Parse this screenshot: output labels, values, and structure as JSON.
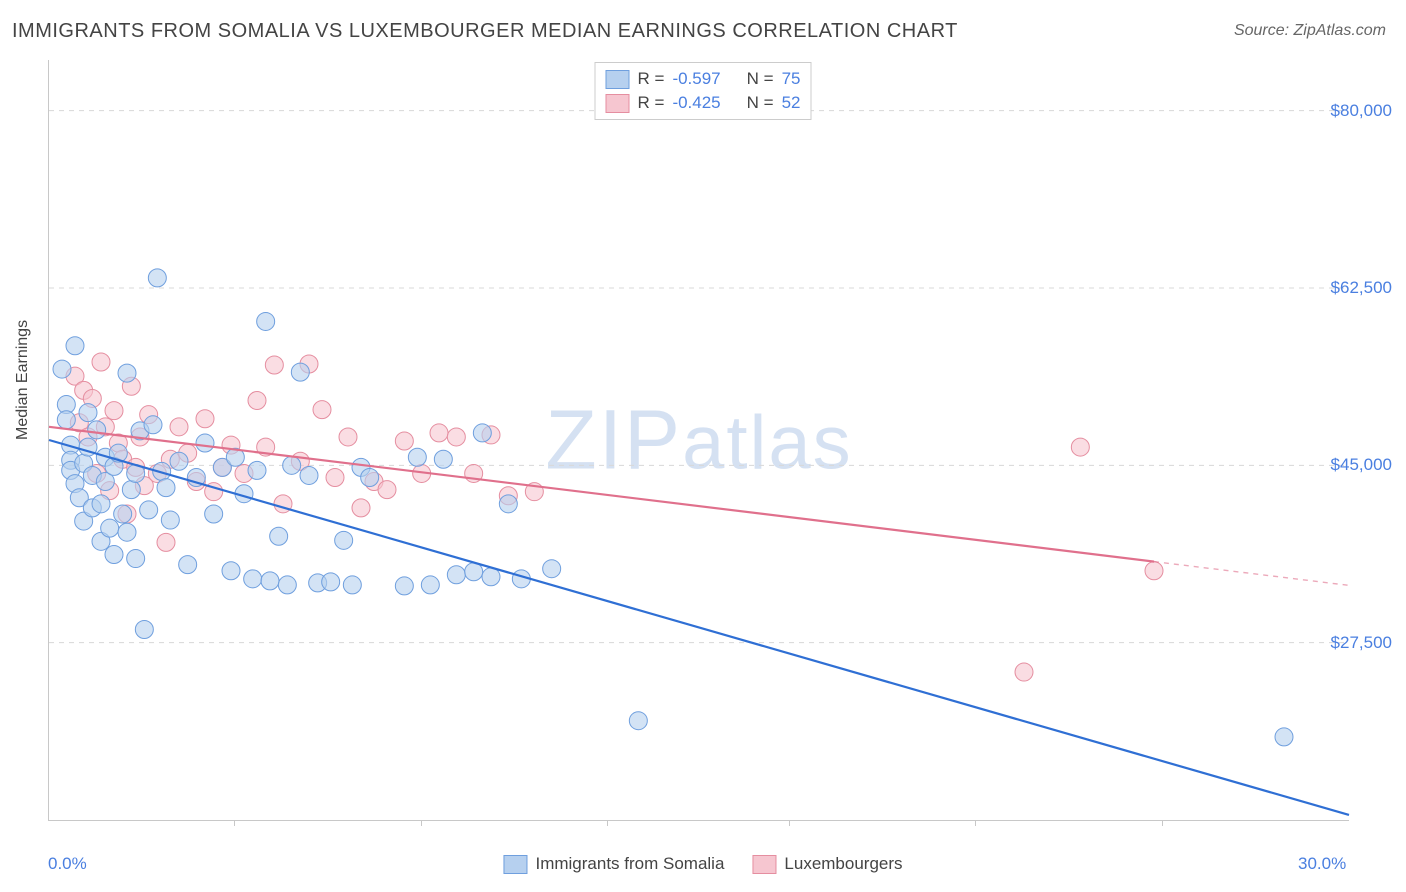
{
  "title": "IMMIGRANTS FROM SOMALIA VS LUXEMBOURGER MEDIAN EARNINGS CORRELATION CHART",
  "source_label": "Source:",
  "source_value": "ZipAtlas.com",
  "ylabel": "Median Earnings",
  "watermark": "ZIPatlas",
  "colors": {
    "series_a_fill": "#b6d0ef",
    "series_a_stroke": "#6f9fde",
    "series_b_fill": "#f6c6d0",
    "series_b_stroke": "#e58ea0",
    "trend_a": "#2f6fd4",
    "trend_b": "#e0708c",
    "grid": "#d8d8d8",
    "axis": "#c8c8c8",
    "tick_text": "#4a7fe0",
    "title_text": "#444444",
    "background": "#ffffff"
  },
  "marker_radius": 9,
  "marker_opacity": 0.6,
  "trend_line_width": 2.2,
  "chart": {
    "type": "scatter",
    "xlim": [
      0,
      30
    ],
    "ylim": [
      10000,
      85000
    ],
    "ytick_values": [
      27500,
      45000,
      62500,
      80000
    ],
    "ytick_labels": [
      "$27,500",
      "$45,000",
      "$62,500",
      "$80,000"
    ],
    "xtick_values": [
      0,
      30
    ],
    "xtick_labels": [
      "0.0%",
      "30.0%"
    ],
    "vtick_positions": [
      4.3,
      8.6,
      12.9,
      17.1,
      21.4,
      25.7
    ]
  },
  "series": [
    {
      "id": "a",
      "name": "Immigrants from Somalia",
      "R": "-0.597",
      "N": "75",
      "trend": {
        "x1": 0,
        "y1": 47500,
        "x2": 30,
        "y2": 10500,
        "extrapolate_from": 30
      },
      "points": [
        [
          0.3,
          54500
        ],
        [
          0.4,
          51000
        ],
        [
          0.4,
          49500
        ],
        [
          0.5,
          47000
        ],
        [
          0.5,
          45500
        ],
        [
          0.5,
          44500
        ],
        [
          0.6,
          43200
        ],
        [
          0.6,
          56800
        ],
        [
          0.7,
          41800
        ],
        [
          0.8,
          45200
        ],
        [
          0.8,
          39500
        ],
        [
          0.9,
          46800
        ],
        [
          0.9,
          50200
        ],
        [
          1.0,
          44000
        ],
        [
          1.0,
          40800
        ],
        [
          1.1,
          48500
        ],
        [
          1.2,
          41200
        ],
        [
          1.2,
          37500
        ],
        [
          1.3,
          45800
        ],
        [
          1.3,
          43400
        ],
        [
          1.4,
          38800
        ],
        [
          1.5,
          44900
        ],
        [
          1.5,
          36200
        ],
        [
          1.6,
          46200
        ],
        [
          1.7,
          40200
        ],
        [
          1.8,
          54100
        ],
        [
          1.8,
          38400
        ],
        [
          1.9,
          42600
        ],
        [
          2.0,
          35800
        ],
        [
          2.0,
          44200
        ],
        [
          2.1,
          48400
        ],
        [
          2.2,
          28800
        ],
        [
          2.3,
          40600
        ],
        [
          2.4,
          49000
        ],
        [
          2.5,
          63500
        ],
        [
          2.6,
          44400
        ],
        [
          2.7,
          42800
        ],
        [
          2.8,
          39600
        ],
        [
          3.0,
          45400
        ],
        [
          3.2,
          35200
        ],
        [
          3.4,
          43800
        ],
        [
          3.6,
          47200
        ],
        [
          3.8,
          40200
        ],
        [
          4.0,
          44800
        ],
        [
          4.2,
          34600
        ],
        [
          4.3,
          45800
        ],
        [
          4.5,
          42200
        ],
        [
          4.7,
          33800
        ],
        [
          4.8,
          44500
        ],
        [
          5.0,
          59200
        ],
        [
          5.1,
          33600
        ],
        [
          5.3,
          38000
        ],
        [
          5.5,
          33200
        ],
        [
          5.6,
          45000
        ],
        [
          5.8,
          54200
        ],
        [
          6.0,
          44000
        ],
        [
          6.2,
          33400
        ],
        [
          6.5,
          33500
        ],
        [
          6.8,
          37600
        ],
        [
          7.0,
          33200
        ],
        [
          7.2,
          44800
        ],
        [
          7.4,
          43800
        ],
        [
          8.2,
          33100
        ],
        [
          8.5,
          45800
        ],
        [
          8.8,
          33200
        ],
        [
          9.1,
          45600
        ],
        [
          9.4,
          34200
        ],
        [
          9.8,
          34500
        ],
        [
          10.0,
          48200
        ],
        [
          10.2,
          34000
        ],
        [
          10.6,
          41200
        ],
        [
          10.9,
          33800
        ],
        [
          11.6,
          34800
        ],
        [
          13.6,
          19800
        ],
        [
          28.5,
          18200
        ]
      ]
    },
    {
      "id": "b",
      "name": "Luxembourgers",
      "R": "-0.425",
      "N": "52",
      "trend": {
        "x1": 0,
        "y1": 48800,
        "x2": 25.5,
        "y2": 35500,
        "extrapolate_from": 25.5
      },
      "points": [
        [
          0.6,
          53800
        ],
        [
          0.7,
          49200
        ],
        [
          0.8,
          52400
        ],
        [
          0.9,
          47800
        ],
        [
          1.0,
          51600
        ],
        [
          1.1,
          44200
        ],
        [
          1.2,
          55200
        ],
        [
          1.3,
          48800
        ],
        [
          1.4,
          42500
        ],
        [
          1.5,
          50400
        ],
        [
          1.6,
          47200
        ],
        [
          1.7,
          45600
        ],
        [
          1.8,
          40200
        ],
        [
          1.9,
          52800
        ],
        [
          2.0,
          44800
        ],
        [
          2.1,
          47800
        ],
        [
          2.2,
          43000
        ],
        [
          2.3,
          50000
        ],
        [
          2.5,
          44200
        ],
        [
          2.7,
          37400
        ],
        [
          2.8,
          45600
        ],
        [
          3.0,
          48800
        ],
        [
          3.2,
          46200
        ],
        [
          3.4,
          43400
        ],
        [
          3.6,
          49600
        ],
        [
          3.8,
          42400
        ],
        [
          4.0,
          44800
        ],
        [
          4.2,
          47000
        ],
        [
          4.5,
          44200
        ],
        [
          4.8,
          51400
        ],
        [
          5.0,
          46800
        ],
        [
          5.2,
          54900
        ],
        [
          5.4,
          41200
        ],
        [
          5.8,
          45400
        ],
        [
          6.0,
          55000
        ],
        [
          6.3,
          50500
        ],
        [
          6.6,
          43800
        ],
        [
          6.9,
          47800
        ],
        [
          7.2,
          40800
        ],
        [
          7.5,
          43400
        ],
        [
          7.8,
          42600
        ],
        [
          8.2,
          47400
        ],
        [
          8.6,
          44200
        ],
        [
          9.0,
          48200
        ],
        [
          9.4,
          47800
        ],
        [
          9.8,
          44200
        ],
        [
          10.2,
          48000
        ],
        [
          10.6,
          42000
        ],
        [
          11.2,
          42400
        ],
        [
          22.5,
          24600
        ],
        [
          23.8,
          46800
        ],
        [
          25.5,
          34600
        ]
      ]
    }
  ],
  "legend_bottom": [
    {
      "swatch": "a",
      "label": "Immigrants from Somalia"
    },
    {
      "swatch": "b",
      "label": "Luxembourgers"
    }
  ]
}
